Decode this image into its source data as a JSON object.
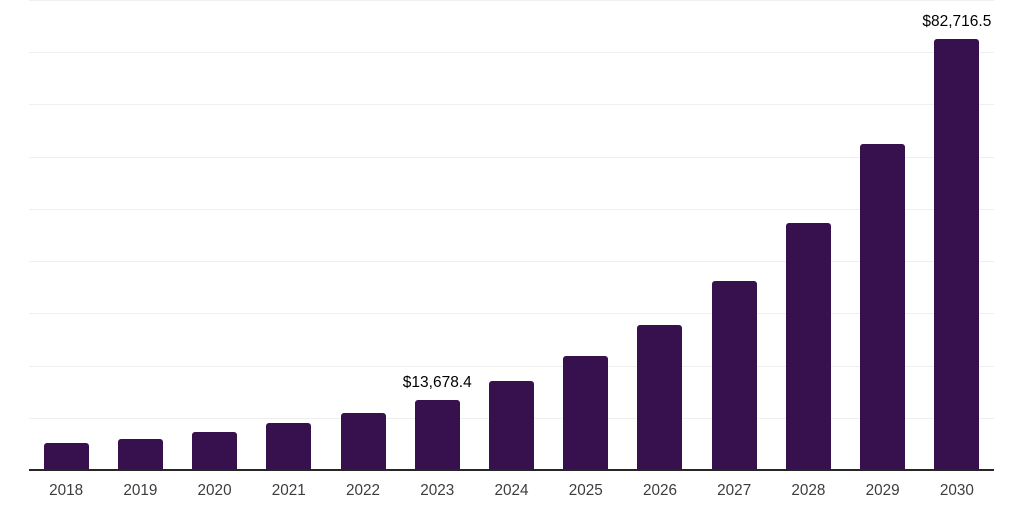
{
  "chart_data": {
    "type": "bar",
    "title": "",
    "xlabel": "",
    "ylabel": "",
    "categories": [
      "2018",
      "2019",
      "2020",
      "2021",
      "2022",
      "2023",
      "2024",
      "2025",
      "2026",
      "2027",
      "2028",
      "2029",
      "2030"
    ],
    "values": [
      5300,
      6100,
      7450,
      9150,
      11200,
      13678.4,
      17300,
      22100,
      28000,
      36300,
      47400,
      62650,
      82716.5
    ],
    "data_labels": [
      "",
      "",
      "",
      "",
      "",
      "$13,678.4",
      "",
      "",
      "",
      "",
      "",
      "",
      "$82,716.5"
    ],
    "ylim": [
      0,
      90000
    ],
    "gridline_interval": 10000,
    "grid": true,
    "legend": "none",
    "colors": {
      "bar": "#36114E",
      "axis_line": "#262626",
      "gridline": "#efefef",
      "tick_label": "#3d3d3d",
      "data_label": "#000000",
      "background": "#ffffff"
    }
  }
}
